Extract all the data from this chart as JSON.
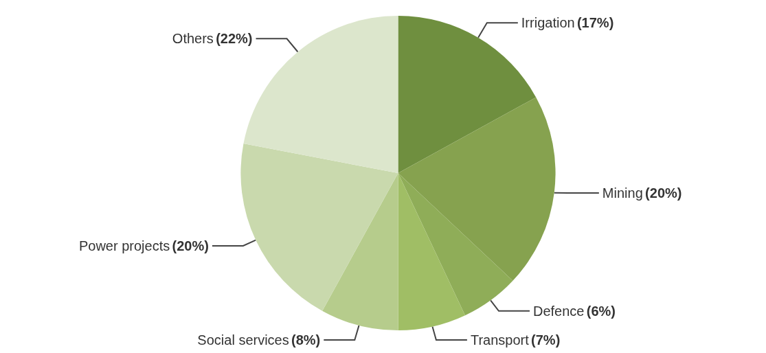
{
  "chart_data": {
    "type": "pie",
    "categories": [
      "Irrigation",
      "Mining",
      "Defence",
      "Transport",
      "Social services",
      "Power projects",
      "Others"
    ],
    "values": [
      17,
      20,
      6,
      7,
      8,
      20,
      22
    ],
    "colors": [
      "#6f8f3f",
      "#86a24f",
      "#8fad58",
      "#a0be65",
      "#b6cc8c",
      "#c9d9ad",
      "#dce6cc"
    ],
    "value_labels": [
      "(17%)",
      "(20%)",
      "(6%)",
      "(7%)",
      "(8%)",
      "(20%)",
      "(22%)"
    ],
    "legend": false
  }
}
